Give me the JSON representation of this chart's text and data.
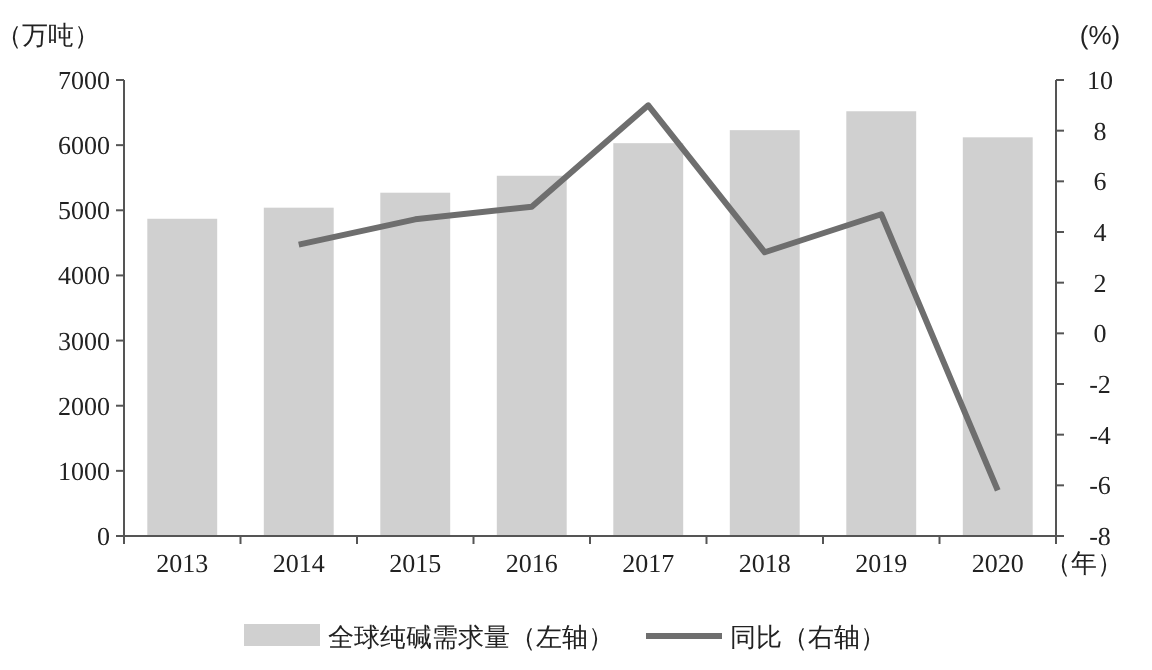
{
  "chart_data": {
    "type": "bar",
    "ylabel": "（万吨）",
    "y2label": "(%)",
    "xlabel": "（年）",
    "categories": [
      "2013",
      "2014",
      "2015",
      "2016",
      "2017",
      "2018",
      "2019",
      "2020"
    ],
    "series": [
      {
        "name": "全球纯碱需求量（左轴）",
        "color": "#d0d0d0",
        "values": [
          4870,
          5040,
          5270,
          5530,
          6030,
          6230,
          6520,
          6120
        ]
      },
      {
        "name": "同比（右轴）",
        "type": "line",
        "axis": "y2",
        "color": "#6e6e6e",
        "values": [
          null,
          3.5,
          4.5,
          5.0,
          9.0,
          3.2,
          4.7,
          -6.2
        ]
      }
    ],
    "ylim": [
      0,
      7000
    ],
    "yticks": [
      0,
      1000,
      2000,
      3000,
      4000,
      5000,
      6000,
      7000
    ],
    "y2lim": [
      -8,
      10
    ],
    "y2ticks": [
      -8,
      -6,
      -4,
      -2,
      0,
      2,
      4,
      6,
      8,
      10
    ],
    "grid": false,
    "legend": "bottom",
    "marker": "none",
    "line_style": "solid"
  }
}
